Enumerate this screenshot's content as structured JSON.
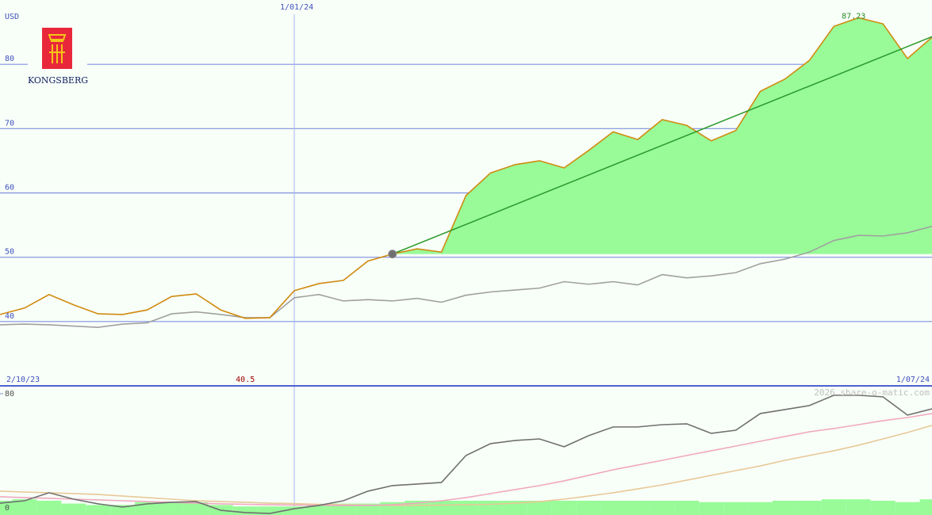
{
  "logo_text": "KONGSBERG",
  "watermark": "2026 share-o-matic.com",
  "chart_data": [
    {
      "type": "line",
      "y_label": "USD",
      "ylim": [
        30,
        90
      ],
      "yticks": [
        40,
        50,
        60,
        70,
        80
      ],
      "grid": true,
      "x_start_label": "2/10/23",
      "x_end_label": "1/07/24",
      "date_markers": [
        {
          "index": 12,
          "label": "1/01/24"
        }
      ],
      "low": {
        "index": 10,
        "value": 40.5,
        "color": "#a00000"
      },
      "high": {
        "index": 35,
        "value": 87.23,
        "color": "#2a8a2a"
      },
      "reference": {
        "index": 16,
        "value": 50.5,
        "fill": "#98fb98"
      },
      "trend": {
        "from_index": 16,
        "from": 50.5,
        "to_index": 38,
        "to": 84.3,
        "color": "#2a9a2a"
      },
      "series": [
        {
          "color": "#a0a0a0",
          "values": [
            39.5,
            39.6,
            39.5,
            39.3,
            39.1,
            39.6,
            39.8,
            41.2,
            41.5,
            41.1,
            40.6,
            40.6,
            43.7,
            44.2,
            43.2,
            43.4,
            43.2,
            43.6,
            43.0,
            44.1,
            44.6,
            44.9,
            45.2,
            46.2,
            45.8,
            46.2,
            45.7,
            47.3,
            46.8,
            47.1,
            47.6,
            49.0,
            49.7,
            50.8,
            52.6,
            53.4,
            53.3,
            53.8,
            54.8
          ]
        },
        {
          "color": "#d08a10",
          "values": [
            41.1,
            42.1,
            44.2,
            42.6,
            41.2,
            41.1,
            41.8,
            43.9,
            44.3,
            41.8,
            40.5,
            40.6,
            44.8,
            45.9,
            46.4,
            49.4,
            50.5,
            51.3,
            50.8,
            59.6,
            63.1,
            64.4,
            65.0,
            63.9,
            66.6,
            69.5,
            68.3,
            71.4,
            70.5,
            68.1,
            69.7,
            75.8,
            77.7,
            80.6,
            85.9,
            87.23,
            86.3,
            80.9,
            84.2
          ]
        }
      ]
    },
    {
      "type": "line",
      "ylim": [
        -5,
        85.5
      ],
      "yticks": [
        0,
        80
      ],
      "grid": false,
      "series": [
        {
          "kind": "bar",
          "color": "#98fb98",
          "values": [
            5,
            6,
            5,
            3,
            2,
            2,
            4,
            4,
            4,
            2,
            1,
            1,
            1,
            2,
            3,
            3,
            4,
            5,
            5,
            5,
            5,
            5,
            5,
            5,
            5,
            5,
            5,
            5,
            5,
            4,
            4,
            4,
            5,
            5,
            6,
            6,
            5,
            4,
            6
          ]
        },
        {
          "color": "#e8c898",
          "values": [
            11.7,
            11.1,
            10.6,
            10.0,
            9.4,
            8.3,
            7.2,
            6.1,
            5.0,
            4.4,
            3.9,
            3.3,
            3.0,
            2.5,
            2.2,
            1.9,
            1.7,
            1.7,
            1.9,
            2.2,
            2.5,
            3.3,
            4.4,
            6.1,
            8.3,
            10.6,
            13.3,
            16.1,
            19.4,
            22.8,
            26.1,
            29.4,
            33.3,
            36.7,
            40.0,
            43.9,
            48.3,
            52.8,
            57.8
          ]
        },
        {
          "color": "#f0a8c0",
          "values": [
            7.8,
            7.2,
            6.7,
            6.1,
            5.6,
            5.0,
            4.4,
            3.9,
            3.3,
            2.8,
            2.5,
            2.2,
            2.0,
            1.8,
            1.7,
            1.7,
            2.2,
            3.3,
            5.0,
            7.2,
            10.0,
            12.8,
            15.6,
            18.9,
            22.8,
            26.7,
            30.0,
            33.3,
            36.7,
            40.0,
            43.3,
            46.7,
            50.0,
            53.3,
            55.6,
            58.3,
            61.1,
            63.3,
            66.1
          ]
        },
        {
          "color": "#707070",
          "values": [
            3.3,
            5.0,
            10.6,
            6.1,
            2.8,
            0.6,
            2.8,
            3.9,
            4.4,
            -1.7,
            -3.3,
            -3.9,
            -0.6,
            1.7,
            5.0,
            11.7,
            15.6,
            16.7,
            17.8,
            36.7,
            45.0,
            47.2,
            48.3,
            42.8,
            50.6,
            56.7,
            56.7,
            58.3,
            58.9,
            52.2,
            54.4,
            66.1,
            68.9,
            71.7,
            78.9,
            78.9,
            77.8,
            65.0,
            69.4
          ]
        }
      ]
    }
  ]
}
